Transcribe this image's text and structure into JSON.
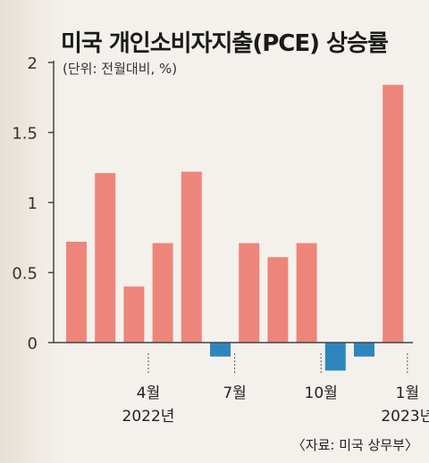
{
  "title": "미국 개인소비자지출(PCE) 상승률",
  "unit_note": "(단위: 전월대비, %)",
  "source": "〈자료: 미국 상무부〉",
  "colors": {
    "positive": "#ee857a",
    "negative": "#2e86be",
    "axis": "#444444",
    "background": "#f4f1ec"
  },
  "chart_data": {
    "type": "bar",
    "title": "미국 개인소비자지출(PCE) 상승률",
    "xlabel": "",
    "ylabel": "",
    "ylim": [
      0,
      2
    ],
    "yticks": [
      "0",
      "0.5",
      "1",
      "1.5",
      "2"
    ],
    "grid": false,
    "values": [
      0.72,
      1.21,
      0.4,
      0.71,
      1.22,
      -0.1,
      0.71,
      0.61,
      0.71,
      -0.2,
      -0.1,
      1.84
    ],
    "xtick_labels": [
      {
        "index": 3,
        "lines": [
          "4월",
          "2022년"
        ]
      },
      {
        "index": 6,
        "lines": [
          "7월"
        ]
      },
      {
        "index": 9,
        "lines": [
          "10월"
        ]
      },
      {
        "index": 12,
        "lines": [
          "1월",
          "2023년"
        ]
      }
    ]
  }
}
